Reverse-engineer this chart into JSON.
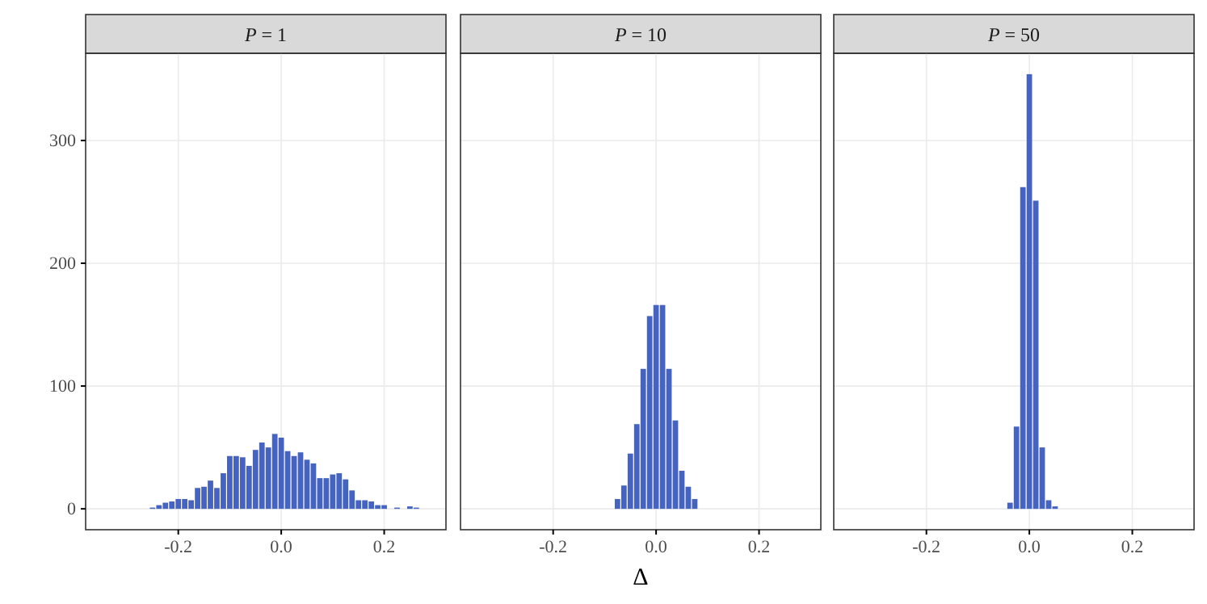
{
  "chart_data": [
    {
      "type": "histogram",
      "title": "P = 1",
      "color": "#4563c2",
      "xlim": [
        -0.38,
        0.32
      ],
      "ylim": [
        -17,
        371
      ],
      "xticks": [
        {
          "value": -0.2,
          "label": "-0.2"
        },
        {
          "value": 0,
          "label": "0.0"
        },
        {
          "value": 0.2,
          "label": "0.2"
        }
      ],
      "yticks": [
        0,
        100,
        200,
        300
      ],
      "grid": true,
      "bins": [
        -0.25625,
        -0.24375,
        -0.23125,
        -0.21875,
        -0.20625,
        -0.19375,
        -0.18125,
        -0.16875,
        -0.15625,
        -0.14375,
        -0.13125,
        -0.11875,
        -0.10625,
        -0.09375,
        -0.08125,
        -0.06875,
        -0.05625,
        -0.04375,
        -0.03125,
        -0.01875,
        -0.00625,
        0.00625,
        0.01875,
        0.03125,
        0.04375,
        0.05625,
        0.06875,
        0.08125,
        0.09375,
        0.10625,
        0.11875,
        0.13125,
        0.14375,
        0.15625,
        0.16875,
        0.18125,
        0.19375,
        0.20625,
        0.21875,
        0.23125,
        0.24375,
        0.25625,
        0.26875
      ],
      "values": [
        1,
        3,
        5,
        6,
        8,
        8,
        7,
        17,
        18,
        23,
        17,
        29,
        43,
        43,
        42,
        35,
        48,
        54,
        50,
        61,
        58,
        47,
        43,
        46,
        40,
        37,
        25,
        25,
        28,
        29,
        24,
        15,
        7,
        7,
        6,
        3,
        3,
        0,
        1,
        0,
        2,
        1
      ]
    },
    {
      "type": "histogram",
      "title": "P = 10",
      "xlabel": "Δ",
      "color": "#4563c2",
      "xlim": [
        -0.38,
        0.32
      ],
      "ylim": [
        -17,
        371
      ],
      "xticks": [
        {
          "value": -0.2,
          "label": "-0.2"
        },
        {
          "value": 0,
          "label": "0.0"
        },
        {
          "value": 0.2,
          "label": "0.2"
        }
      ],
      "yticks": [
        0,
        100,
        200,
        300
      ],
      "grid": true,
      "tick_labels": "x",
      "bins": [
        -0.08125,
        -0.06875,
        -0.05625,
        -0.04375,
        -0.03125,
        -0.01875,
        -0.00625,
        0.00625,
        0.01875,
        0.03125,
        0.04375,
        0.05625,
        0.06875,
        0.08125
      ],
      "values": [
        8,
        19,
        45,
        69,
        114,
        157,
        166,
        166,
        114,
        72,
        31,
        18,
        8
      ]
    },
    {
      "type": "histogram",
      "title": "P = 50",
      "color": "#4563c2",
      "xlim": [
        -0.38,
        0.32
      ],
      "ylim": [
        -17,
        371
      ],
      "xticks": [
        {
          "value": -0.2,
          "label": "-0.2"
        },
        {
          "value": 0,
          "label": "0.0"
        },
        {
          "value": 0.2,
          "label": "0.2"
        }
      ],
      "yticks": [
        0,
        100,
        200,
        300
      ],
      "grid": true,
      "tick_labels": "x",
      "bins": [
        -0.04375,
        -0.03125,
        -0.01875,
        -0.00625,
        0.00625,
        0.01875,
        0.03125,
        0.04375,
        0.05625
      ],
      "values": [
        5,
        67,
        262,
        354,
        251,
        50,
        7,
        2
      ]
    }
  ]
}
